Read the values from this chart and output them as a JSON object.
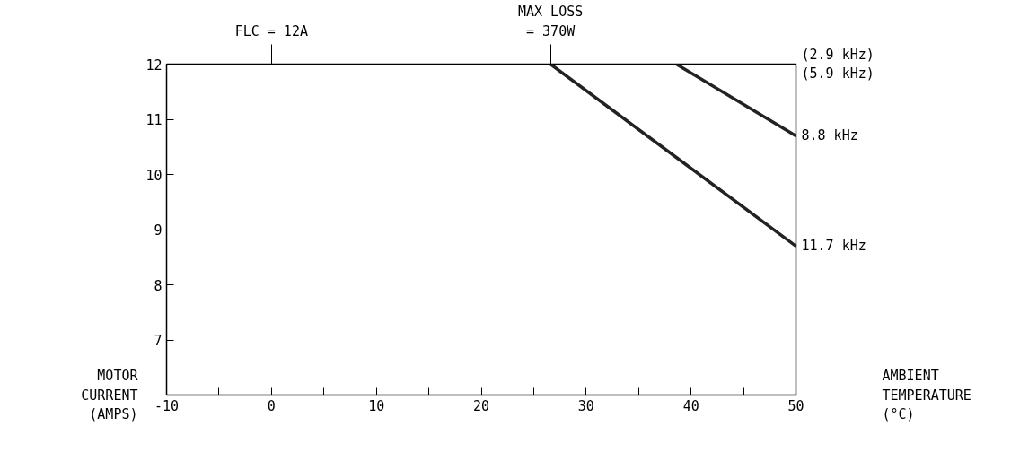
{
  "chart_data": {
    "type": "line",
    "ylabel": "MOTOR\nCURRENT\n(AMPS)",
    "series": [
      {
        "name": "8.8 kHz",
        "color": "#222222",
        "x": [
          38.6,
          50
        ],
        "values": [
          12,
          10.7
        ]
      },
      {
        "name": "11.7 kHz",
        "color": "#222222",
        "x": [
          26.6,
          50
        ],
        "values": [
          12,
          8.7
        ]
      }
    ],
    "xlim": [
      -10,
      50
    ],
    "ylim": [
      6,
      12
    ],
    "xticks": [
      -10,
      {
        "value": -5,
        "label": null
      },
      0,
      {
        "value": 5,
        "label": null
      },
      10,
      {
        "value": 15,
        "label": null
      },
      20,
      {
        "value": 25,
        "label": null
      },
      30,
      {
        "value": 35,
        "label": null
      },
      40,
      {
        "value": 45,
        "label": null
      },
      50
    ],
    "yticks": [
      7,
      8,
      9,
      10,
      11,
      12
    ],
    "grid": false,
    "legend": false,
    "marker": "none",
    "line_style": "solid",
    "annotations": [
      "FLC = 12A",
      {
        "text": "MAX LOSS\n= 370W",
        "x": 26.6,
        "y": 12
      },
      "(2.9 kHz)\n(5.9 kHz)",
      "AMBIENT\nTEMPERATURE\n(°C)"
    ]
  }
}
